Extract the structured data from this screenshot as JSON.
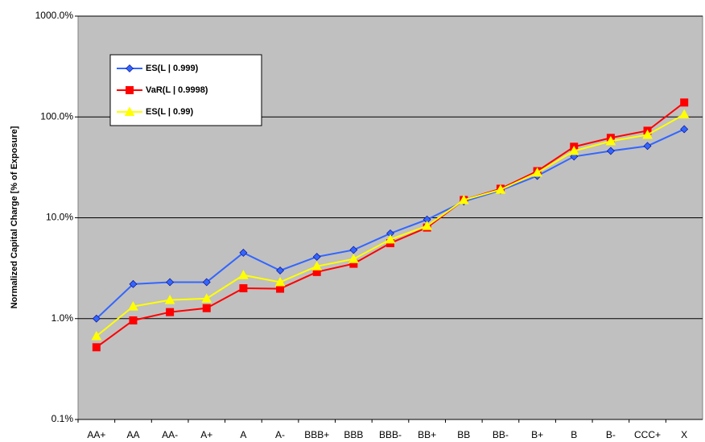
{
  "chart_data": {
    "type": "line",
    "yscale": "log",
    "grid": true,
    "legend": "upper left",
    "y_label": "Normalized Capital Charge [% of Exposure]",
    "categories": [
      "AA+",
      "AA",
      "AA-",
      "A+",
      "A",
      "A-",
      "BBB+",
      "BBB",
      "BBB-",
      "BB+",
      "BB",
      "BB-",
      "B+",
      "B",
      "B-",
      "CCC+",
      "X"
    ],
    "ylim": [
      0.1,
      1000
    ],
    "yticks": [
      {
        "value": 0.1,
        "label": "0.1%"
      },
      {
        "value": 1,
        "label": "1.0%"
      },
      {
        "value": 10,
        "label": "10.0%"
      },
      {
        "value": 100,
        "label": "100.0%"
      },
      {
        "value": 1000,
        "label": "1000.0%"
      }
    ],
    "series": [
      {
        "name": "ES(L | 0.999)",
        "color": "#3366ff",
        "marker": "diamond",
        "values": [
          1.0,
          2.2,
          2.3,
          2.3,
          4.5,
          3.0,
          4.1,
          4.8,
          7.0,
          9.6,
          14.5,
          18.7,
          26,
          40.5,
          46,
          51.5,
          75.6
        ]
      },
      {
        "name": "VaR(L | 0.9998)",
        "color": "#ff0000",
        "marker": "square",
        "values": [
          0.52,
          0.96,
          1.16,
          1.27,
          2.0,
          1.98,
          2.9,
          3.5,
          5.6,
          8.0,
          15,
          19.4,
          29,
          50.6,
          62,
          73,
          139
        ]
      },
      {
        "name": "ES(L | 0.99)",
        "color": "#ffff00",
        "marker": "triangle",
        "values": [
          0.67,
          1.32,
          1.53,
          1.58,
          2.7,
          2.3,
          3.3,
          3.9,
          6.1,
          8.3,
          15,
          19,
          28,
          46,
          57.5,
          66.5,
          106
        ]
      }
    ]
  }
}
